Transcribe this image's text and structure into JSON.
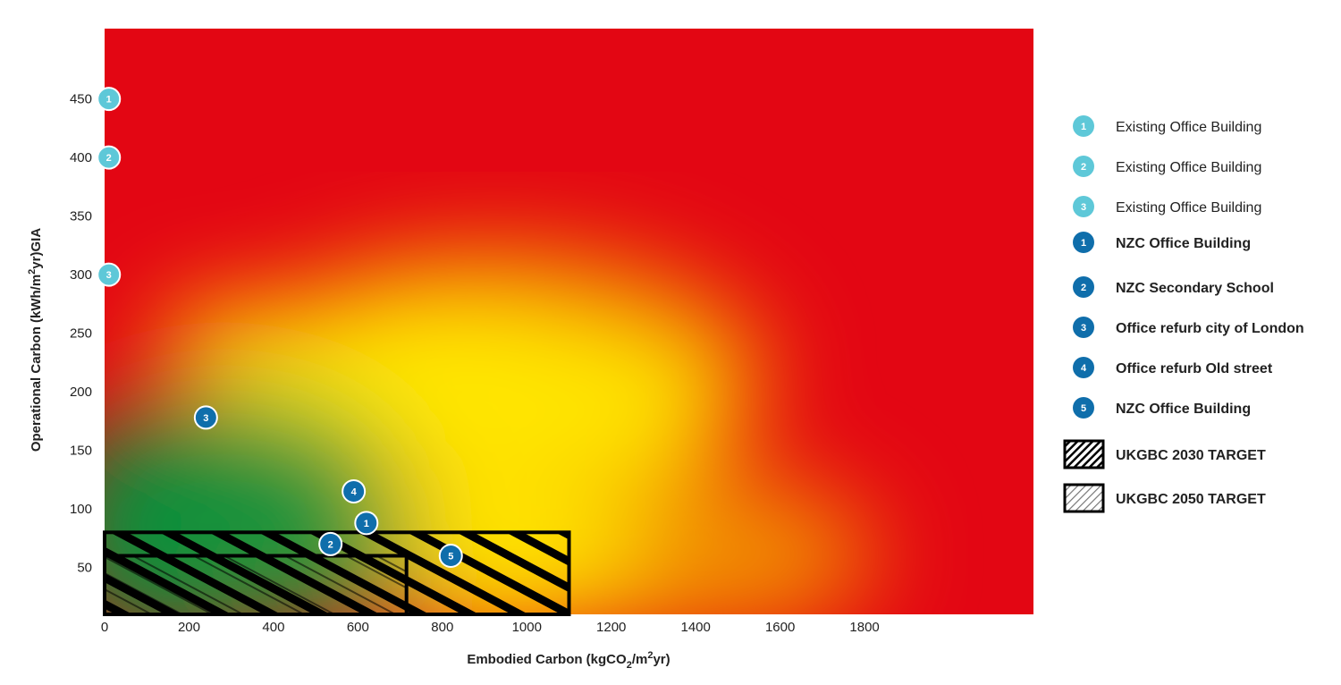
{
  "chart_data": {
    "type": "scatter",
    "title": "",
    "xlabel_parts": [
      "Embodied Carbon (kgCO",
      "2",
      "/m",
      "2",
      "yr)"
    ],
    "ylabel_parts": [
      "Operational Carbon (kWh/m",
      "2",
      "yr)GIA"
    ],
    "xlim": [
      0,
      2200
    ],
    "ylim": [
      10,
      510
    ],
    "x_ticks": [
      0,
      200,
      400,
      600,
      800,
      1000,
      1200,
      1400,
      1600,
      1800
    ],
    "y_ticks": [
      50,
      100,
      150,
      200,
      250,
      300,
      350,
      400,
      450
    ],
    "colors": {
      "existing": "#5ec8d8",
      "nzc": "#0f6eab",
      "red": "#e30613",
      "yellow": "#ffe600",
      "green": "#0b8f3a"
    },
    "points": [
      {
        "label": "1",
        "group": "existing",
        "x": 10,
        "y": 450
      },
      {
        "label": "2",
        "group": "existing",
        "x": 10,
        "y": 400
      },
      {
        "label": "3",
        "group": "existing",
        "x": 10,
        "y": 300
      },
      {
        "label": "1",
        "group": "nzc",
        "x": 620,
        "y": 88
      },
      {
        "label": "2",
        "group": "nzc",
        "x": 535,
        "y": 70
      },
      {
        "label": "3",
        "group": "nzc",
        "x": 240,
        "y": 178
      },
      {
        "label": "4",
        "group": "nzc",
        "x": 590,
        "y": 115
      },
      {
        "label": "5",
        "group": "nzc",
        "x": 820,
        "y": 60
      }
    ],
    "target_regions": [
      {
        "name": "UKGBC 2030 TARGET",
        "x": [
          0,
          1100
        ],
        "y": [
          10,
          80
        ],
        "style": "dense-hatch"
      },
      {
        "name": "UKGBC 2050 TARGET",
        "x": [
          0,
          715
        ],
        "y": [
          10,
          60
        ],
        "style": "light-hatch"
      }
    ],
    "legend": [
      {
        "marker": "1",
        "group": "existing",
        "label": "Existing Office Building"
      },
      {
        "marker": "2",
        "group": "existing",
        "label": "Existing Office Building"
      },
      {
        "marker": "3",
        "group": "existing",
        "label": "Existing Office Building"
      },
      {
        "marker": "1",
        "group": "nzc",
        "label": "NZC Office Building"
      },
      {
        "marker": "2",
        "group": "nzc",
        "label": "NZC Secondary School"
      },
      {
        "marker": "3",
        "group": "nzc",
        "label": "Office refurb city of London"
      },
      {
        "marker": "4",
        "group": "nzc",
        "label": "Office refurb Old street"
      },
      {
        "marker": "5",
        "group": "nzc",
        "label": "NZC Office Building"
      },
      {
        "marker": "",
        "group": "target-2030",
        "label": "UKGBC 2030 TARGET"
      },
      {
        "marker": "",
        "group": "target-2050",
        "label": "UKGBC 2050 TARGET"
      }
    ],
    "legend_position": "right",
    "grid": false
  }
}
